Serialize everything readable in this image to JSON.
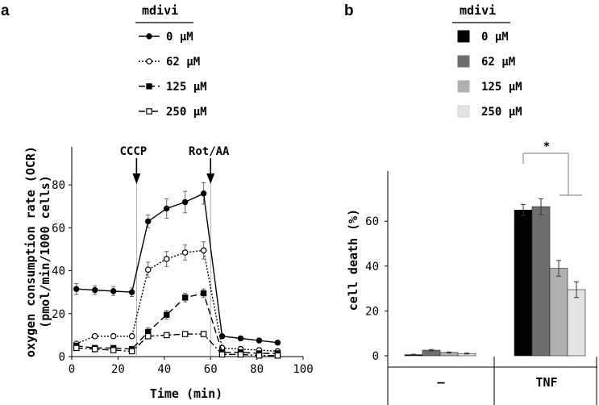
{
  "chart_data": [
    {
      "panel": "a",
      "type": "line",
      "legend_title": "mdivi",
      "xlabel": "Time (min)",
      "ylabel": "oxygen consumption rate (OCR)",
      "ylabel2": "(pmol/min/1000 cells)",
      "xlim": [
        0,
        100
      ],
      "ylim": [
        0,
        90
      ],
      "xticks": [
        "0",
        "20",
        "40",
        "60",
        "80",
        "100"
      ],
      "yticks": [
        "0",
        "20",
        "40",
        "60",
        "80"
      ],
      "annotations": [
        "CCCP",
        "Rot/AA"
      ],
      "annotation_x": [
        28,
        60
      ],
      "x": [
        2,
        10,
        18,
        26,
        33,
        41,
        49,
        57,
        65,
        73,
        81,
        89
      ],
      "series": [
        {
          "name": "0 μM",
          "marker": "filled-circle",
          "dash": "solid",
          "values": [
            31.5,
            31,
            30.5,
            30,
            63,
            69,
            72,
            76,
            9.5,
            8.5,
            7.5,
            6.5
          ],
          "errors": [
            2.5,
            2,
            2,
            2,
            3,
            4.5,
            5,
            5,
            1,
            1,
            1,
            1
          ]
        },
        {
          "name": "62 μM",
          "marker": "open-circle",
          "dash": "dotted",
          "values": [
            6,
            9.5,
            9.5,
            9.5,
            40.5,
            45.5,
            48.5,
            49.5,
            4,
            3.5,
            3,
            2.5
          ],
          "errors": [
            1,
            1,
            1,
            1,
            3.5,
            3.5,
            3.5,
            4,
            1,
            1,
            1,
            1
          ]
        },
        {
          "name": "125 μM",
          "marker": "filled-square",
          "dash": "dashed",
          "values": [
            5,
            4,
            4,
            3.5,
            11.5,
            19.5,
            27.5,
            29.5,
            2,
            2,
            1.5,
            1.5
          ],
          "errors": [
            2,
            1,
            1,
            1,
            2,
            2,
            2,
            2,
            1,
            1,
            1,
            1
          ]
        },
        {
          "name": "250 μM",
          "marker": "open-square",
          "dash": "dashdot",
          "values": [
            4,
            3.5,
            3,
            2.5,
            9.5,
            10,
            10.5,
            10.5,
            1,
            1,
            0.5,
            0.5
          ],
          "errors": [
            1,
            1,
            1,
            1,
            1,
            1,
            1,
            1,
            0.5,
            0.5,
            0.5,
            0.5
          ]
        }
      ]
    },
    {
      "panel": "b",
      "type": "bar",
      "legend_title": "mdivi",
      "ylabel": "cell death (%)",
      "ylim": [
        0,
        70
      ],
      "yticks": [
        "0",
        "20",
        "40",
        "60"
      ],
      "categories": [
        "–",
        "TNF"
      ],
      "significance": "*",
      "series": [
        {
          "name": "0 μM",
          "color": "#000000",
          "values": [
            0.5,
            65
          ],
          "errors": [
            0.2,
            2.5
          ]
        },
        {
          "name": "62 μM",
          "color": "#6e6e6e",
          "values": [
            2.5,
            66.5
          ],
          "errors": [
            0.3,
            3.5
          ]
        },
        {
          "name": "125 μM",
          "color": "#b0b0b0",
          "values": [
            1.5,
            39
          ],
          "errors": [
            0.2,
            3.5
          ]
        },
        {
          "name": "250 μM",
          "color": "#e3e3e3",
          "values": [
            1,
            29.5
          ],
          "errors": [
            0.2,
            3.5
          ]
        }
      ]
    }
  ]
}
